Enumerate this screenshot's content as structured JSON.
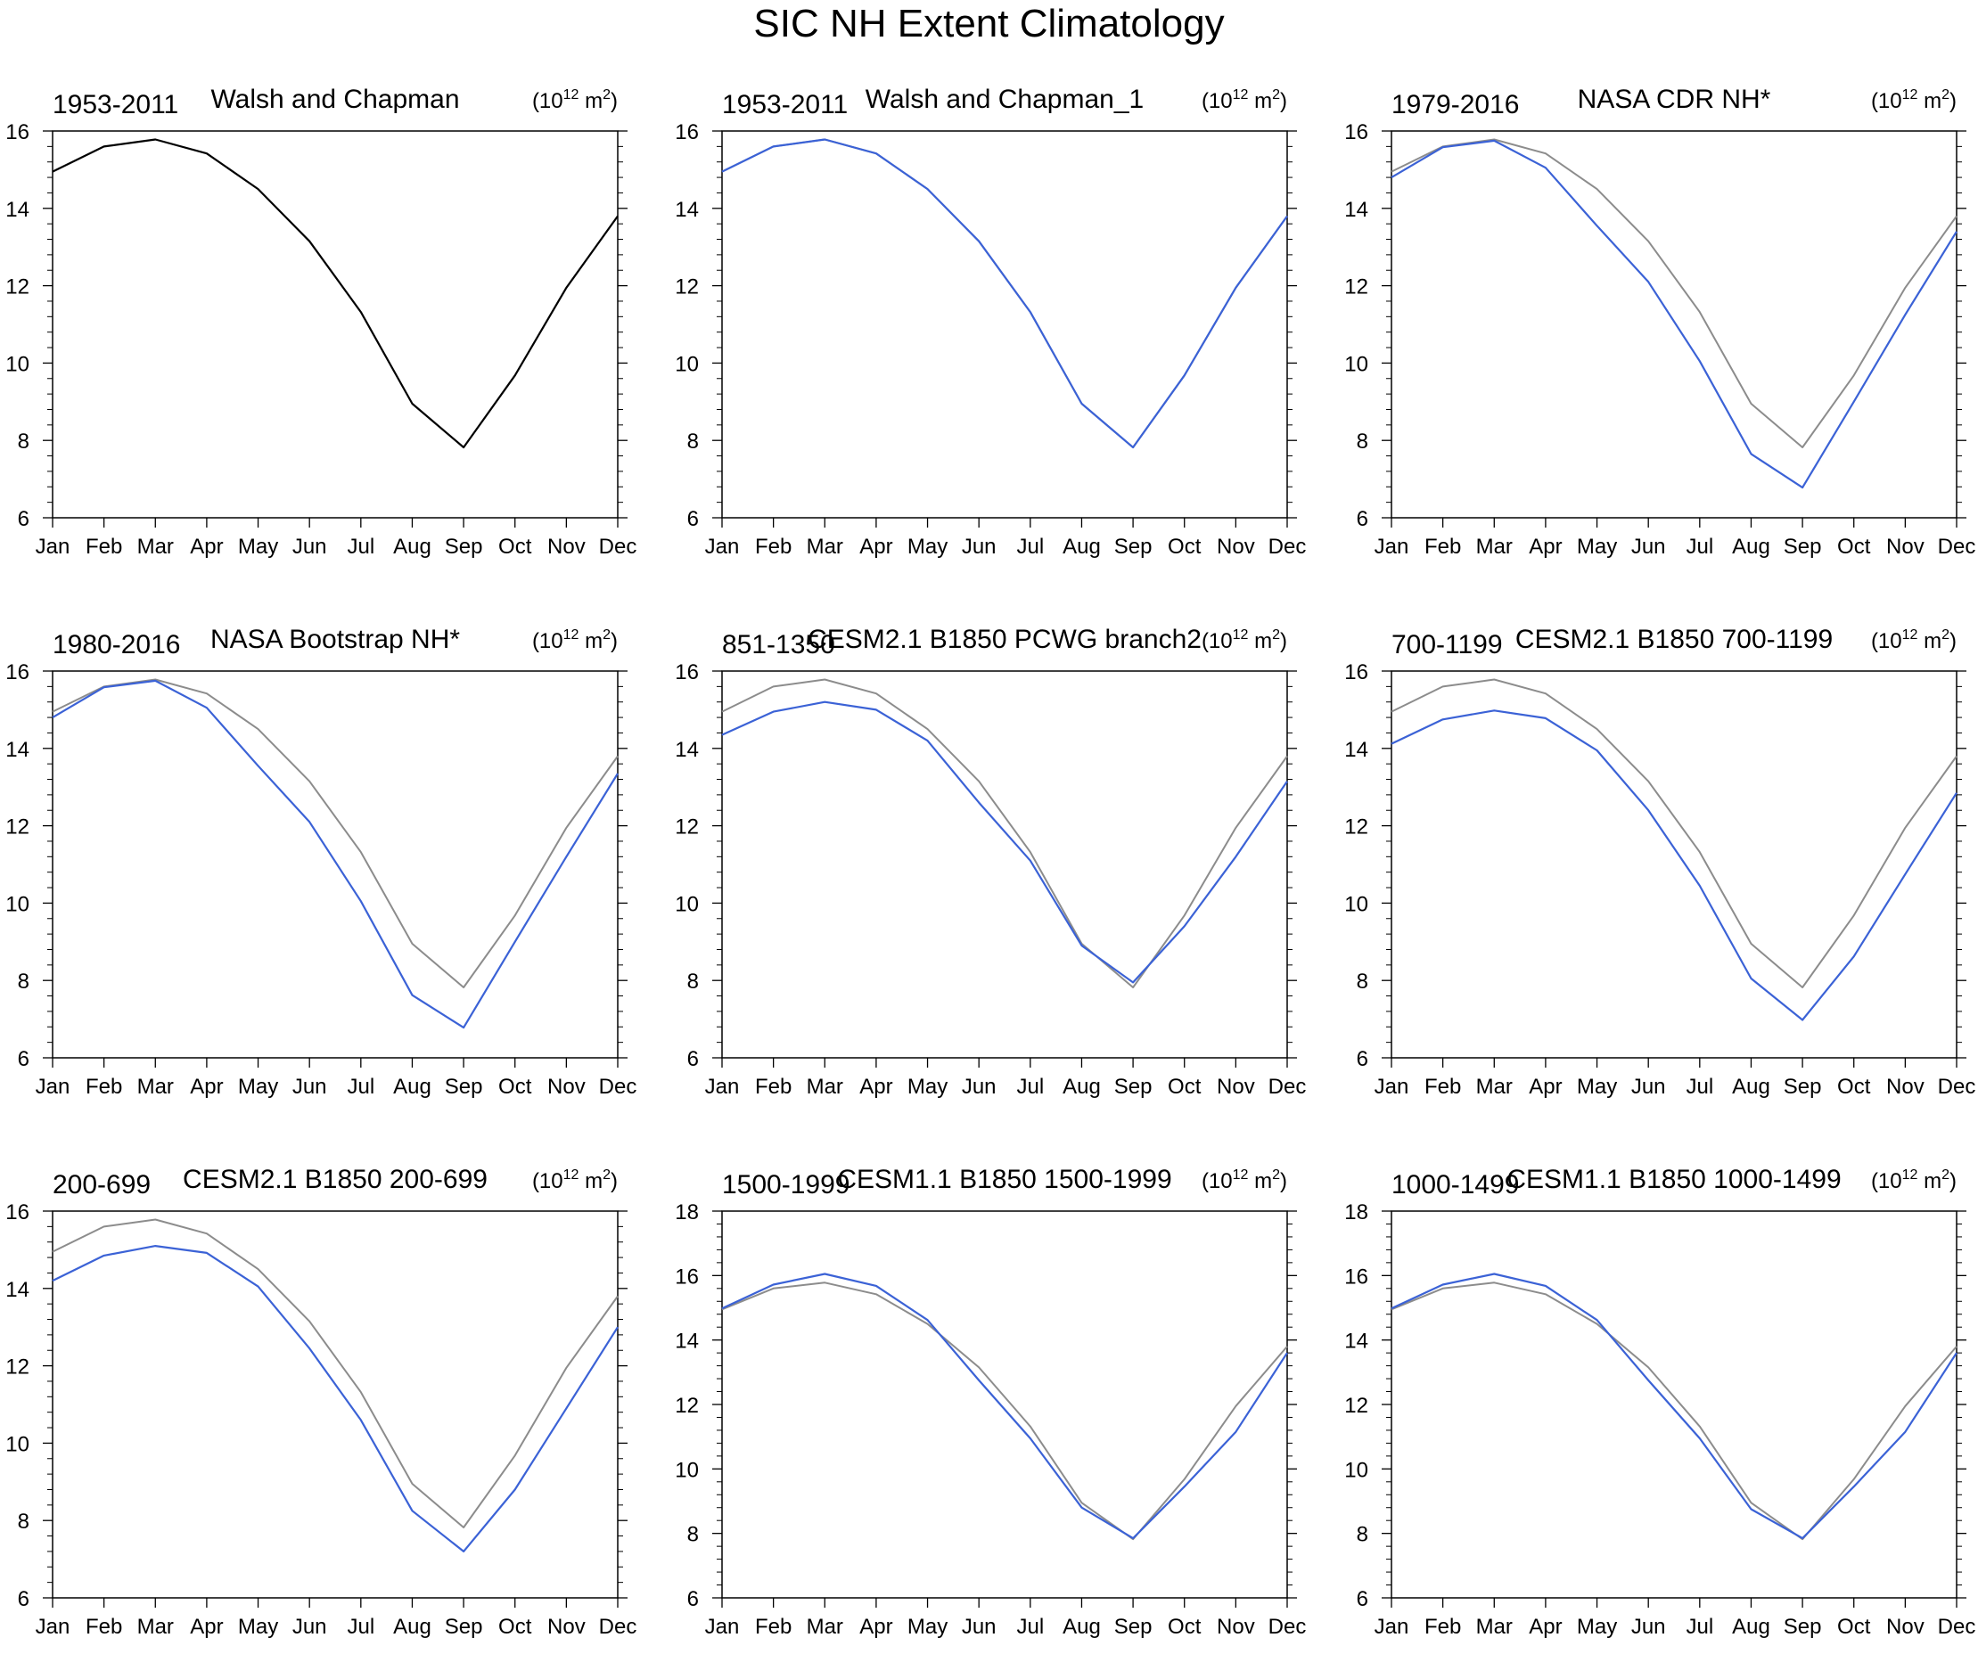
{
  "figure": {
    "title": "SIC NH Extent Climatology"
  },
  "colors": {
    "reference": "#8c8c8c",
    "model": "#3b62d6",
    "first_panel": "#000000"
  },
  "units_label": {
    "base": "(10",
    "exponent": "12",
    "unit": "m",
    "unit_exponent": "2",
    "close": ")"
  },
  "months": [
    "Jan",
    "Feb",
    "Mar",
    "Apr",
    "May",
    "Jun",
    "Jul",
    "Aug",
    "Sep",
    "Oct",
    "Nov",
    "Dec"
  ],
  "chart_data": [
    {
      "type": "line",
      "period": "1953-2011",
      "title": "Walsh and Chapman",
      "ylim": [
        6,
        16
      ],
      "yticks": [
        6,
        8,
        10,
        12,
        14,
        16
      ],
      "series": [
        {
          "name": "Walsh and Chapman",
          "role": "model",
          "color": "#000000",
          "values": [
            14.95,
            15.6,
            15.78,
            15.42,
            14.5,
            13.15,
            11.32,
            8.95,
            7.82,
            9.68,
            11.95,
            13.8
          ]
        }
      ]
    },
    {
      "type": "line",
      "period": "1953-2011",
      "title": "Walsh and Chapman_1",
      "ylim": [
        6,
        16
      ],
      "yticks": [
        6,
        8,
        10,
        12,
        14,
        16
      ],
      "series": [
        {
          "name": "Walsh and Chapman",
          "role": "reference",
          "color": "#8c8c8c",
          "values": [
            14.95,
            15.6,
            15.78,
            15.42,
            14.5,
            13.15,
            11.32,
            8.95,
            7.82,
            9.68,
            11.95,
            13.8
          ]
        },
        {
          "name": "Walsh and Chapman_1",
          "role": "model",
          "color": "#3b62d6",
          "values": [
            14.95,
            15.6,
            15.78,
            15.42,
            14.5,
            13.15,
            11.32,
            8.95,
            7.82,
            9.68,
            11.95,
            13.8
          ]
        }
      ]
    },
    {
      "type": "line",
      "period": "1979-2016",
      "title": "NASA CDR NH*",
      "ylim": [
        6,
        16
      ],
      "yticks": [
        6,
        8,
        10,
        12,
        14,
        16
      ],
      "series": [
        {
          "name": "Walsh and Chapman",
          "role": "reference",
          "color": "#8c8c8c",
          "values": [
            14.95,
            15.6,
            15.78,
            15.42,
            14.5,
            13.15,
            11.32,
            8.95,
            7.82,
            9.68,
            11.95,
            13.8
          ]
        },
        {
          "name": "NASA CDR NH*",
          "role": "model",
          "color": "#3b62d6",
          "values": [
            14.8,
            15.58,
            15.75,
            15.05,
            13.55,
            12.1,
            10.05,
            7.65,
            6.78,
            9.0,
            11.25,
            13.4
          ]
        }
      ]
    },
    {
      "type": "line",
      "period": "1980-2016",
      "title": "NASA Bootstrap NH*",
      "ylim": [
        6,
        16
      ],
      "yticks": [
        6,
        8,
        10,
        12,
        14,
        16
      ],
      "series": [
        {
          "name": "Walsh and Chapman",
          "role": "reference",
          "color": "#8c8c8c",
          "values": [
            14.95,
            15.6,
            15.78,
            15.42,
            14.5,
            13.15,
            11.32,
            8.95,
            7.82,
            9.68,
            11.95,
            13.8
          ]
        },
        {
          "name": "NASA Bootstrap NH*",
          "role": "model",
          "color": "#3b62d6",
          "values": [
            14.8,
            15.58,
            15.75,
            15.05,
            13.55,
            12.1,
            10.05,
            7.62,
            6.78,
            9.0,
            11.2,
            13.35
          ]
        }
      ]
    },
    {
      "type": "line",
      "period": "851-1350",
      "title": "CESM2.1 B1850 PCWG branch2",
      "ylim": [
        6,
        16
      ],
      "yticks": [
        6,
        8,
        10,
        12,
        14,
        16
      ],
      "series": [
        {
          "name": "Walsh and Chapman",
          "role": "reference",
          "color": "#8c8c8c",
          "values": [
            14.95,
            15.6,
            15.78,
            15.42,
            14.5,
            13.15,
            11.32,
            8.95,
            7.82,
            9.68,
            11.95,
            13.8
          ]
        },
        {
          "name": "CESM2.1 B1850 PCWG branch2",
          "role": "model",
          "color": "#3b62d6",
          "values": [
            14.35,
            14.95,
            15.2,
            15.0,
            14.2,
            12.6,
            11.1,
            8.9,
            7.95,
            9.4,
            11.2,
            13.15
          ]
        }
      ]
    },
    {
      "type": "line",
      "period": "700-1199",
      "title": "CESM2.1 B1850 700-1199",
      "ylim": [
        6,
        16
      ],
      "yticks": [
        6,
        8,
        10,
        12,
        14,
        16
      ],
      "series": [
        {
          "name": "Walsh and Chapman",
          "role": "reference",
          "color": "#8c8c8c",
          "values": [
            14.95,
            15.6,
            15.78,
            15.42,
            14.5,
            13.15,
            11.32,
            8.95,
            7.82,
            9.68,
            11.95,
            13.8
          ]
        },
        {
          "name": "CESM2.1 B1850 700-1199",
          "role": "model",
          "color": "#3b62d6",
          "values": [
            14.12,
            14.75,
            14.98,
            14.78,
            13.95,
            12.4,
            10.45,
            8.05,
            6.98,
            8.62,
            10.75,
            12.85
          ]
        }
      ]
    },
    {
      "type": "line",
      "period": "200-699",
      "title": "CESM2.1 B1850 200-699",
      "ylim": [
        6,
        16
      ],
      "yticks": [
        6,
        8,
        10,
        12,
        14,
        16
      ],
      "series": [
        {
          "name": "Walsh and Chapman",
          "role": "reference",
          "color": "#8c8c8c",
          "values": [
            14.95,
            15.6,
            15.78,
            15.42,
            14.5,
            13.15,
            11.32,
            8.95,
            7.82,
            9.68,
            11.95,
            13.8
          ]
        },
        {
          "name": "CESM2.1 B1850 200-699",
          "role": "model",
          "color": "#3b62d6",
          "values": [
            14.2,
            14.85,
            15.1,
            14.92,
            14.05,
            12.45,
            10.6,
            8.25,
            7.2,
            8.8,
            10.9,
            13.0
          ]
        }
      ]
    },
    {
      "type": "line",
      "period": "1500-1999",
      "title": "CESM1.1 B1850 1500-1999",
      "ylim": [
        6,
        18
      ],
      "yticks": [
        6,
        8,
        10,
        12,
        14,
        16,
        18
      ],
      "series": [
        {
          "name": "Walsh and Chapman",
          "role": "reference",
          "color": "#8c8c8c",
          "values": [
            14.95,
            15.6,
            15.78,
            15.42,
            14.5,
            13.15,
            11.32,
            8.95,
            7.82,
            9.68,
            11.95,
            13.8
          ]
        },
        {
          "name": "CESM1.1 B1850 1500-1999",
          "role": "model",
          "color": "#3b62d6",
          "values": [
            14.98,
            15.72,
            16.05,
            15.68,
            14.62,
            12.75,
            10.95,
            8.8,
            7.85,
            9.45,
            11.15,
            13.6
          ]
        }
      ]
    },
    {
      "type": "line",
      "period": "1000-1499",
      "title": "CESM1.1 B1850 1000-1499",
      "ylim": [
        6,
        18
      ],
      "yticks": [
        6,
        8,
        10,
        12,
        14,
        16,
        18
      ],
      "series": [
        {
          "name": "Walsh and Chapman",
          "role": "reference",
          "color": "#8c8c8c",
          "values": [
            14.95,
            15.6,
            15.78,
            15.42,
            14.5,
            13.15,
            11.32,
            8.95,
            7.82,
            9.68,
            11.95,
            13.8
          ]
        },
        {
          "name": "CESM1.1 B1850 1000-1499",
          "role": "model",
          "color": "#3b62d6",
          "values": [
            14.98,
            15.72,
            16.05,
            15.68,
            14.62,
            12.75,
            10.95,
            8.75,
            7.85,
            9.45,
            11.15,
            13.6
          ]
        }
      ]
    }
  ]
}
